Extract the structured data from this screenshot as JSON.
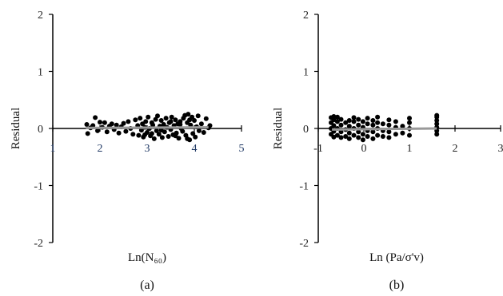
{
  "chart_data": [
    {
      "type": "scatter",
      "panel_label": "(a)",
      "xlabel": "Ln(N₆₀)",
      "ylabel": "Residual",
      "xlim": [
        1,
        5
      ],
      "ylim": [
        -2,
        2
      ],
      "x_ticks": [
        "1",
        "2",
        "3",
        "4",
        "5"
      ],
      "y_ticks": [
        "2",
        "1",
        "0",
        "-1",
        "-2"
      ],
      "trend": {
        "x": [
          1.7,
          4.3
        ],
        "y": [
          0.01,
          0.02
        ]
      },
      "points": [
        [
          1.72,
          0.07
        ],
        [
          1.74,
          -0.09
        ],
        [
          1.8,
          0.01
        ],
        [
          1.85,
          0.05
        ],
        [
          1.9,
          0.19
        ],
        [
          1.95,
          -0.04
        ],
        [
          2.0,
          0.11
        ],
        [
          2.05,
          0.02
        ],
        [
          2.1,
          0.1
        ],
        [
          2.15,
          -0.06
        ],
        [
          2.2,
          0.04
        ],
        [
          2.25,
          0.08
        ],
        [
          2.3,
          -0.02
        ],
        [
          2.35,
          0.06
        ],
        [
          2.4,
          -0.08
        ],
        [
          2.45,
          0.03
        ],
        [
          2.5,
          0.09
        ],
        [
          2.55,
          -0.05
        ],
        [
          2.6,
          0.12
        ],
        [
          2.65,
          0.0
        ],
        [
          2.7,
          -0.1
        ],
        [
          2.75,
          0.15
        ],
        [
          2.8,
          0.05
        ],
        [
          2.82,
          -0.12
        ],
        [
          2.85,
          0.18
        ],
        [
          2.88,
          -0.03
        ],
        [
          2.9,
          0.08
        ],
        [
          2.92,
          -0.15
        ],
        [
          2.95,
          0.02
        ],
        [
          2.97,
          0.12
        ],
        [
          3.0,
          -0.07
        ],
        [
          3.02,
          0.2
        ],
        [
          3.05,
          0.0
        ],
        [
          3.07,
          -0.13
        ],
        [
          3.1,
          0.1
        ],
        [
          3.12,
          0.06
        ],
        [
          3.15,
          -0.18
        ],
        [
          3.18,
          0.16
        ],
        [
          3.2,
          -0.04
        ],
        [
          3.22,
          0.22
        ],
        [
          3.25,
          -0.1
        ],
        [
          3.27,
          0.04
        ],
        [
          3.3,
          0.14
        ],
        [
          3.32,
          -0.16
        ],
        [
          3.35,
          0.07
        ],
        [
          3.37,
          -0.06
        ],
        [
          3.4,
          0.18
        ],
        [
          3.42,
          0.02
        ],
        [
          3.45,
          -0.14
        ],
        [
          3.47,
          0.1
        ],
        [
          3.5,
          -0.02
        ],
        [
          3.52,
          0.2
        ],
        [
          3.55,
          -0.11
        ],
        [
          3.57,
          0.05
        ],
        [
          3.6,
          0.15
        ],
        [
          3.62,
          -0.08
        ],
        [
          3.65,
          0.08
        ],
        [
          3.67,
          -0.17
        ],
        [
          3.7,
          0.12
        ],
        [
          3.72,
          0.0
        ],
        [
          3.75,
          -0.05
        ],
        [
          3.77,
          0.18
        ],
        [
          3.8,
          0.23
        ],
        [
          3.82,
          -0.12
        ],
        [
          3.85,
          0.1
        ],
        [
          3.87,
          0.25
        ],
        [
          3.9,
          -0.2
        ],
        [
          3.92,
          0.06
        ],
        [
          3.95,
          0.2
        ],
        [
          3.97,
          -0.09
        ],
        [
          4.0,
          0.14
        ],
        [
          4.02,
          -0.15
        ],
        [
          4.05,
          0.03
        ],
        [
          4.08,
          0.22
        ],
        [
          4.1,
          -0.04
        ],
        [
          4.15,
          0.08
        ],
        [
          4.2,
          -0.07
        ],
        [
          4.25,
          0.17
        ],
        [
          4.3,
          0.01
        ],
        [
          4.33,
          0.05
        ],
        [
          3.1,
          -0.09
        ],
        [
          3.3,
          -0.03
        ],
        [
          3.5,
          0.12
        ],
        [
          3.7,
          0.07
        ],
        [
          3.9,
          0.15
        ],
        [
          2.95,
          -0.11
        ],
        [
          3.6,
          -0.13
        ],
        [
          3.85,
          -0.18
        ]
      ]
    },
    {
      "type": "scatter",
      "panel_label": "(b)",
      "xlabel": "Ln (Pa/σ'v)",
      "ylabel": "Residual",
      "xlim": [
        -1,
        3
      ],
      "ylim": [
        -2,
        2
      ],
      "x_ticks": [
        "-1",
        "0",
        "1",
        "2",
        "3"
      ],
      "y_ticks": [
        "2",
        "1",
        "0",
        "-1",
        "-2"
      ],
      "trend": {
        "x": [
          -0.7,
          1.6
        ],
        "y": [
          -0.02,
          0.0
        ]
      },
      "points": [
        [
          -0.72,
          -0.1
        ],
        [
          -0.72,
          0.0
        ],
        [
          -0.72,
          0.1
        ],
        [
          -0.72,
          0.19
        ],
        [
          -0.66,
          -0.15
        ],
        [
          -0.66,
          -0.05
        ],
        [
          -0.66,
          0.05
        ],
        [
          -0.66,
          0.15
        ],
        [
          -0.66,
          0.21
        ],
        [
          -0.58,
          -0.12
        ],
        [
          -0.58,
          0.0
        ],
        [
          -0.58,
          0.12
        ],
        [
          -0.58,
          0.2
        ],
        [
          -0.5,
          -0.16
        ],
        [
          -0.5,
          -0.06
        ],
        [
          -0.5,
          0.06
        ],
        [
          -0.5,
          0.16
        ],
        [
          -0.4,
          -0.14
        ],
        [
          -0.4,
          -0.02
        ],
        [
          -0.4,
          0.1
        ],
        [
          -0.32,
          -0.18
        ],
        [
          -0.32,
          -0.08
        ],
        [
          -0.32,
          0.04
        ],
        [
          -0.32,
          0.14
        ],
        [
          -0.22,
          -0.12
        ],
        [
          -0.22,
          0.0
        ],
        [
          -0.22,
          0.12
        ],
        [
          -0.22,
          0.19
        ],
        [
          -0.12,
          -0.16
        ],
        [
          -0.12,
          -0.06
        ],
        [
          -0.12,
          0.06
        ],
        [
          -0.12,
          0.16
        ],
        [
          -0.02,
          -0.2
        ],
        [
          -0.02,
          -0.1
        ],
        [
          -0.02,
          0.02
        ],
        [
          -0.02,
          0.12
        ],
        [
          0.08,
          -0.14
        ],
        [
          0.08,
          -0.04
        ],
        [
          0.08,
          0.08
        ],
        [
          0.08,
          0.18
        ],
        [
          0.2,
          -0.18
        ],
        [
          0.2,
          -0.06
        ],
        [
          0.2,
          0.06
        ],
        [
          0.2,
          0.14
        ],
        [
          0.3,
          -0.12
        ],
        [
          0.3,
          0.0
        ],
        [
          0.3,
          0.1
        ],
        [
          0.3,
          0.2
        ],
        [
          0.42,
          -0.14
        ],
        [
          0.42,
          -0.04
        ],
        [
          0.42,
          0.08
        ],
        [
          0.55,
          -0.16
        ],
        [
          0.55,
          -0.06
        ],
        [
          0.55,
          0.06
        ],
        [
          0.55,
          0.15
        ],
        [
          0.7,
          -0.1
        ],
        [
          0.7,
          0.02
        ],
        [
          0.7,
          0.12
        ],
        [
          0.85,
          -0.08
        ],
        [
          0.85,
          0.04
        ],
        [
          1.0,
          -0.12
        ],
        [
          1.0,
          0.0
        ],
        [
          1.0,
          0.1
        ],
        [
          1.0,
          0.18
        ],
        [
          1.6,
          -0.1
        ],
        [
          1.6,
          -0.04
        ],
        [
          1.6,
          0.02
        ],
        [
          1.6,
          0.08
        ],
        [
          1.6,
          0.14
        ],
        [
          1.6,
          0.2
        ],
        [
          1.6,
          0.23
        ]
      ]
    }
  ]
}
